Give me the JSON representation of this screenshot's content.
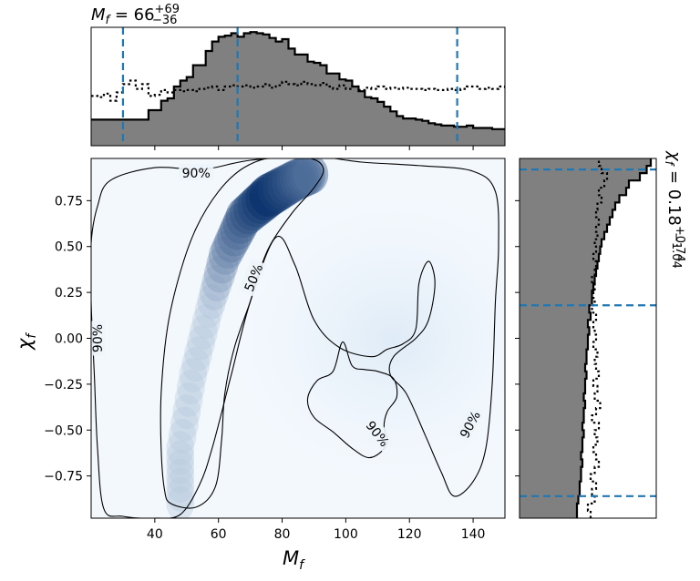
{
  "chart_data": [
    {
      "id": "joint",
      "type": "heatmap",
      "colormap": "Blues",
      "x_axis": {
        "label": "M",
        "label_sub": "f",
        "range": [
          20,
          150
        ],
        "ticks": [
          40,
          60,
          80,
          100,
          120,
          140
        ]
      },
      "y_axis": {
        "label": "χ",
        "label_sub": "f",
        "range": [
          -0.98,
          0.98
        ],
        "ticks": [
          "0.75",
          "0.50",
          "0.25",
          "0.00",
          "−0.25",
          "−0.50",
          "−0.75"
        ],
        "tick_values": [
          0.75,
          0.5,
          0.25,
          0,
          -0.25,
          -0.5,
          -0.75
        ]
      },
      "density_peak": {
        "x": 76,
        "y": 0.78
      },
      "density_ridge": [
        [
          48,
          -0.9
        ],
        [
          48,
          -0.6
        ],
        [
          52,
          -0.2
        ],
        [
          57,
          0.15
        ],
        [
          62,
          0.45
        ],
        [
          68,
          0.66
        ],
        [
          76,
          0.78
        ],
        [
          84,
          0.86
        ],
        [
          90,
          0.9
        ]
      ],
      "contours": [
        {
          "level": "50%",
          "label": "50%",
          "label_at": [
            71,
            0.33
          ],
          "points": [
            [
              45,
              -0.9
            ],
            [
              53,
              -0.92
            ],
            [
              59,
              -0.81
            ],
            [
              61,
              -0.55
            ],
            [
              62,
              -0.3
            ],
            [
              65,
              -0.05
            ],
            [
              70,
              0.2
            ],
            [
              72,
              0.32
            ],
            [
              76,
              0.5
            ],
            [
              83,
              0.68
            ],
            [
              90,
              0.82
            ],
            [
              93,
              0.92
            ],
            [
              89,
              0.98
            ],
            [
              78,
              0.99
            ],
            [
              68,
              0.93
            ],
            [
              60,
              0.8
            ],
            [
              53,
              0.6
            ],
            [
              48,
              0.36
            ],
            [
              44,
              0.06
            ],
            [
              42,
              -0.3
            ],
            [
              42,
              -0.6
            ],
            [
              43,
              -0.82
            ]
          ]
        },
        {
          "level": "90%",
          "label": "90%",
          "label_at": [
            53,
            0.9
          ],
          "points": [
            [
              20,
              0.52
            ],
            [
              22,
              0.72
            ],
            [
              26,
              0.86
            ],
            [
              40,
              0.93
            ],
            [
              55,
              0.92
            ],
            [
              70,
              0.97
            ],
            [
              90,
              0.99
            ],
            [
              105,
              0.96
            ],
            [
              124,
              0.94
            ],
            [
              140,
              0.91
            ],
            [
              147,
              0.8
            ],
            [
              148,
              0.5
            ],
            [
              147,
              0.2
            ],
            [
              146,
              -0.25
            ],
            [
              144,
              -0.6
            ],
            [
              140,
              -0.78
            ],
            [
              134,
              -0.86
            ],
            [
              130,
              -0.73
            ],
            [
              125,
              -0.53
            ],
            [
              119,
              -0.3
            ],
            [
              114,
              -0.2
            ],
            [
              115,
              -0.1
            ],
            [
              122,
              0.0
            ],
            [
              126,
              0.1
            ],
            [
              128,
              0.3
            ],
            [
              126,
              0.42
            ],
            [
              123,
              0.3
            ],
            [
              122,
              0.05
            ],
            [
              118,
              -0.03
            ],
            [
              113,
              -0.06
            ],
            [
              108,
              -0.1
            ],
            [
              98,
              -0.05
            ],
            [
              90,
              0.1
            ],
            [
              84,
              0.4
            ],
            [
              78,
              0.55
            ],
            [
              70,
              0.2
            ],
            [
              64,
              -0.2
            ],
            [
              58,
              -0.6
            ],
            [
              54,
              -0.8
            ],
            [
              48,
              -0.96
            ],
            [
              40,
              -0.98
            ],
            [
              30,
              -0.97
            ],
            [
              24,
              -0.93
            ],
            [
              22,
              -0.6
            ],
            [
              21,
              -0.2
            ],
            [
              20,
              0.2
            ]
          ]
        },
        {
          "level": "90%",
          "label": "90%",
          "label_at": [
            110,
            -0.52
          ],
          "points": [
            [
              110,
              -0.18
            ],
            [
              115,
              -0.22
            ],
            [
              116,
              -0.32
            ],
            [
              113,
              -0.4
            ],
            [
              112,
              -0.48
            ],
            [
              113,
              -0.56
            ],
            [
              111,
              -0.62
            ],
            [
              107,
              -0.65
            ],
            [
              102,
              -0.6
            ],
            [
              96,
              -0.51
            ],
            [
              90,
              -0.43
            ],
            [
              88,
              -0.33
            ],
            [
              91,
              -0.23
            ],
            [
              96,
              -0.18
            ],
            [
              99,
              -0.02
            ],
            [
              102,
              -0.15
            ],
            [
              106,
              -0.17
            ]
          ]
        }
      ],
      "contour_labels_extra": [
        {
          "label": "90%",
          "at": [
            22,
            0.0
          ]
        },
        {
          "label": "90%",
          "at": [
            139,
            -0.47
          ]
        }
      ]
    },
    {
      "id": "top-marginal",
      "type": "bar",
      "histtype": "step",
      "parameter": "M_f",
      "title": {
        "name": "M",
        "sub": "f",
        "eq": " = 66",
        "sup": "+69",
        "inf": "−36"
      },
      "x_range": [
        20,
        150
      ],
      "bin_width": 2,
      "bin_start": 20,
      "posterior": [
        0.22,
        0.22,
        0.22,
        0.22,
        0.22,
        0.22,
        0.22,
        0.22,
        0.22,
        0.3,
        0.3,
        0.38,
        0.4,
        0.5,
        0.55,
        0.58,
        0.68,
        0.68,
        0.8,
        0.88,
        0.92,
        0.93,
        0.95,
        0.92,
        0.95,
        0.96,
        0.95,
        0.94,
        0.91,
        0.88,
        0.9,
        0.82,
        0.77,
        0.77,
        0.71,
        0.7,
        0.68,
        0.61,
        0.61,
        0.56,
        0.55,
        0.5,
        0.46,
        0.41,
        0.4,
        0.37,
        0.33,
        0.29,
        0.25,
        0.23,
        0.23,
        0.22,
        0.21,
        0.19,
        0.18,
        0.17,
        0.17,
        0.16,
        0.16,
        0.17,
        0.15,
        0.15,
        0.15,
        0.14,
        0.14,
        0.14
      ],
      "prior": [
        0.42,
        0.41,
        0.44,
        0.38,
        0.45,
        0.52,
        0.55,
        0.48,
        0.52,
        0.42,
        0.43,
        0.47,
        0.45,
        0.47,
        0.46,
        0.47,
        0.46,
        0.48,
        0.49,
        0.5,
        0.47,
        0.5,
        0.51,
        0.5,
        0.51,
        0.49,
        0.5,
        0.52,
        0.49,
        0.51,
        0.54,
        0.52,
        0.51,
        0.54,
        0.52,
        0.51,
        0.53,
        0.5,
        0.48,
        0.51,
        0.48,
        0.5,
        0.47,
        0.49,
        0.48,
        0.5,
        0.48,
        0.49,
        0.48,
        0.49,
        0.48,
        0.48,
        0.47,
        0.48,
        0.47,
        0.47,
        0.48,
        0.47,
        0.48,
        0.5,
        0.5,
        0.48,
        0.49,
        0.48,
        0.5,
        0.48
      ],
      "quantile_lines": [
        30,
        66,
        135
      ],
      "y_max": 1.0
    },
    {
      "id": "right-marginal",
      "type": "bar",
      "orientation": "horizontal",
      "histtype": "step",
      "parameter": "chi_f",
      "title": {
        "name": "χ",
        "sub": "f",
        "eq": " = 0.18",
        "sup": "+0.74",
        "inf": "−1.04"
      },
      "y_range": [
        -0.98,
        0.98
      ],
      "bin_width": 0.04,
      "bin_start": -0.98,
      "posterior": [
        0.42,
        0.42,
        0.43,
        0.44,
        0.44,
        0.45,
        0.45,
        0.46,
        0.45,
        0.46,
        0.46,
        0.47,
        0.46,
        0.47,
        0.47,
        0.48,
        0.47,
        0.48,
        0.48,
        0.49,
        0.48,
        0.49,
        0.49,
        0.5,
        0.5,
        0.51,
        0.5,
        0.52,
        0.51,
        0.53,
        0.53,
        0.54,
        0.55,
        0.56,
        0.57,
        0.58,
        0.59,
        0.6,
        0.62,
        0.64,
        0.66,
        0.68,
        0.7,
        0.73,
        0.78,
        0.8,
        0.88,
        0.93,
        0.96
      ],
      "prior": [
        0.52,
        0.5,
        0.55,
        0.53,
        0.56,
        0.52,
        0.55,
        0.58,
        0.56,
        0.54,
        0.57,
        0.55,
        0.58,
        0.53,
        0.56,
        0.59,
        0.55,
        0.57,
        0.54,
        0.58,
        0.56,
        0.55,
        0.57,
        0.54,
        0.56,
        0.55,
        0.54,
        0.56,
        0.53,
        0.55,
        0.54,
        0.55,
        0.53,
        0.55,
        0.56,
        0.54,
        0.56,
        0.55,
        0.57,
        0.56,
        0.58,
        0.56,
        0.57,
        0.6,
        0.58,
        0.62,
        0.64,
        0.6,
        0.58
      ],
      "quantile_lines": [
        -0.86,
        0.18,
        0.92
      ],
      "x_max": 1.0
    }
  ]
}
